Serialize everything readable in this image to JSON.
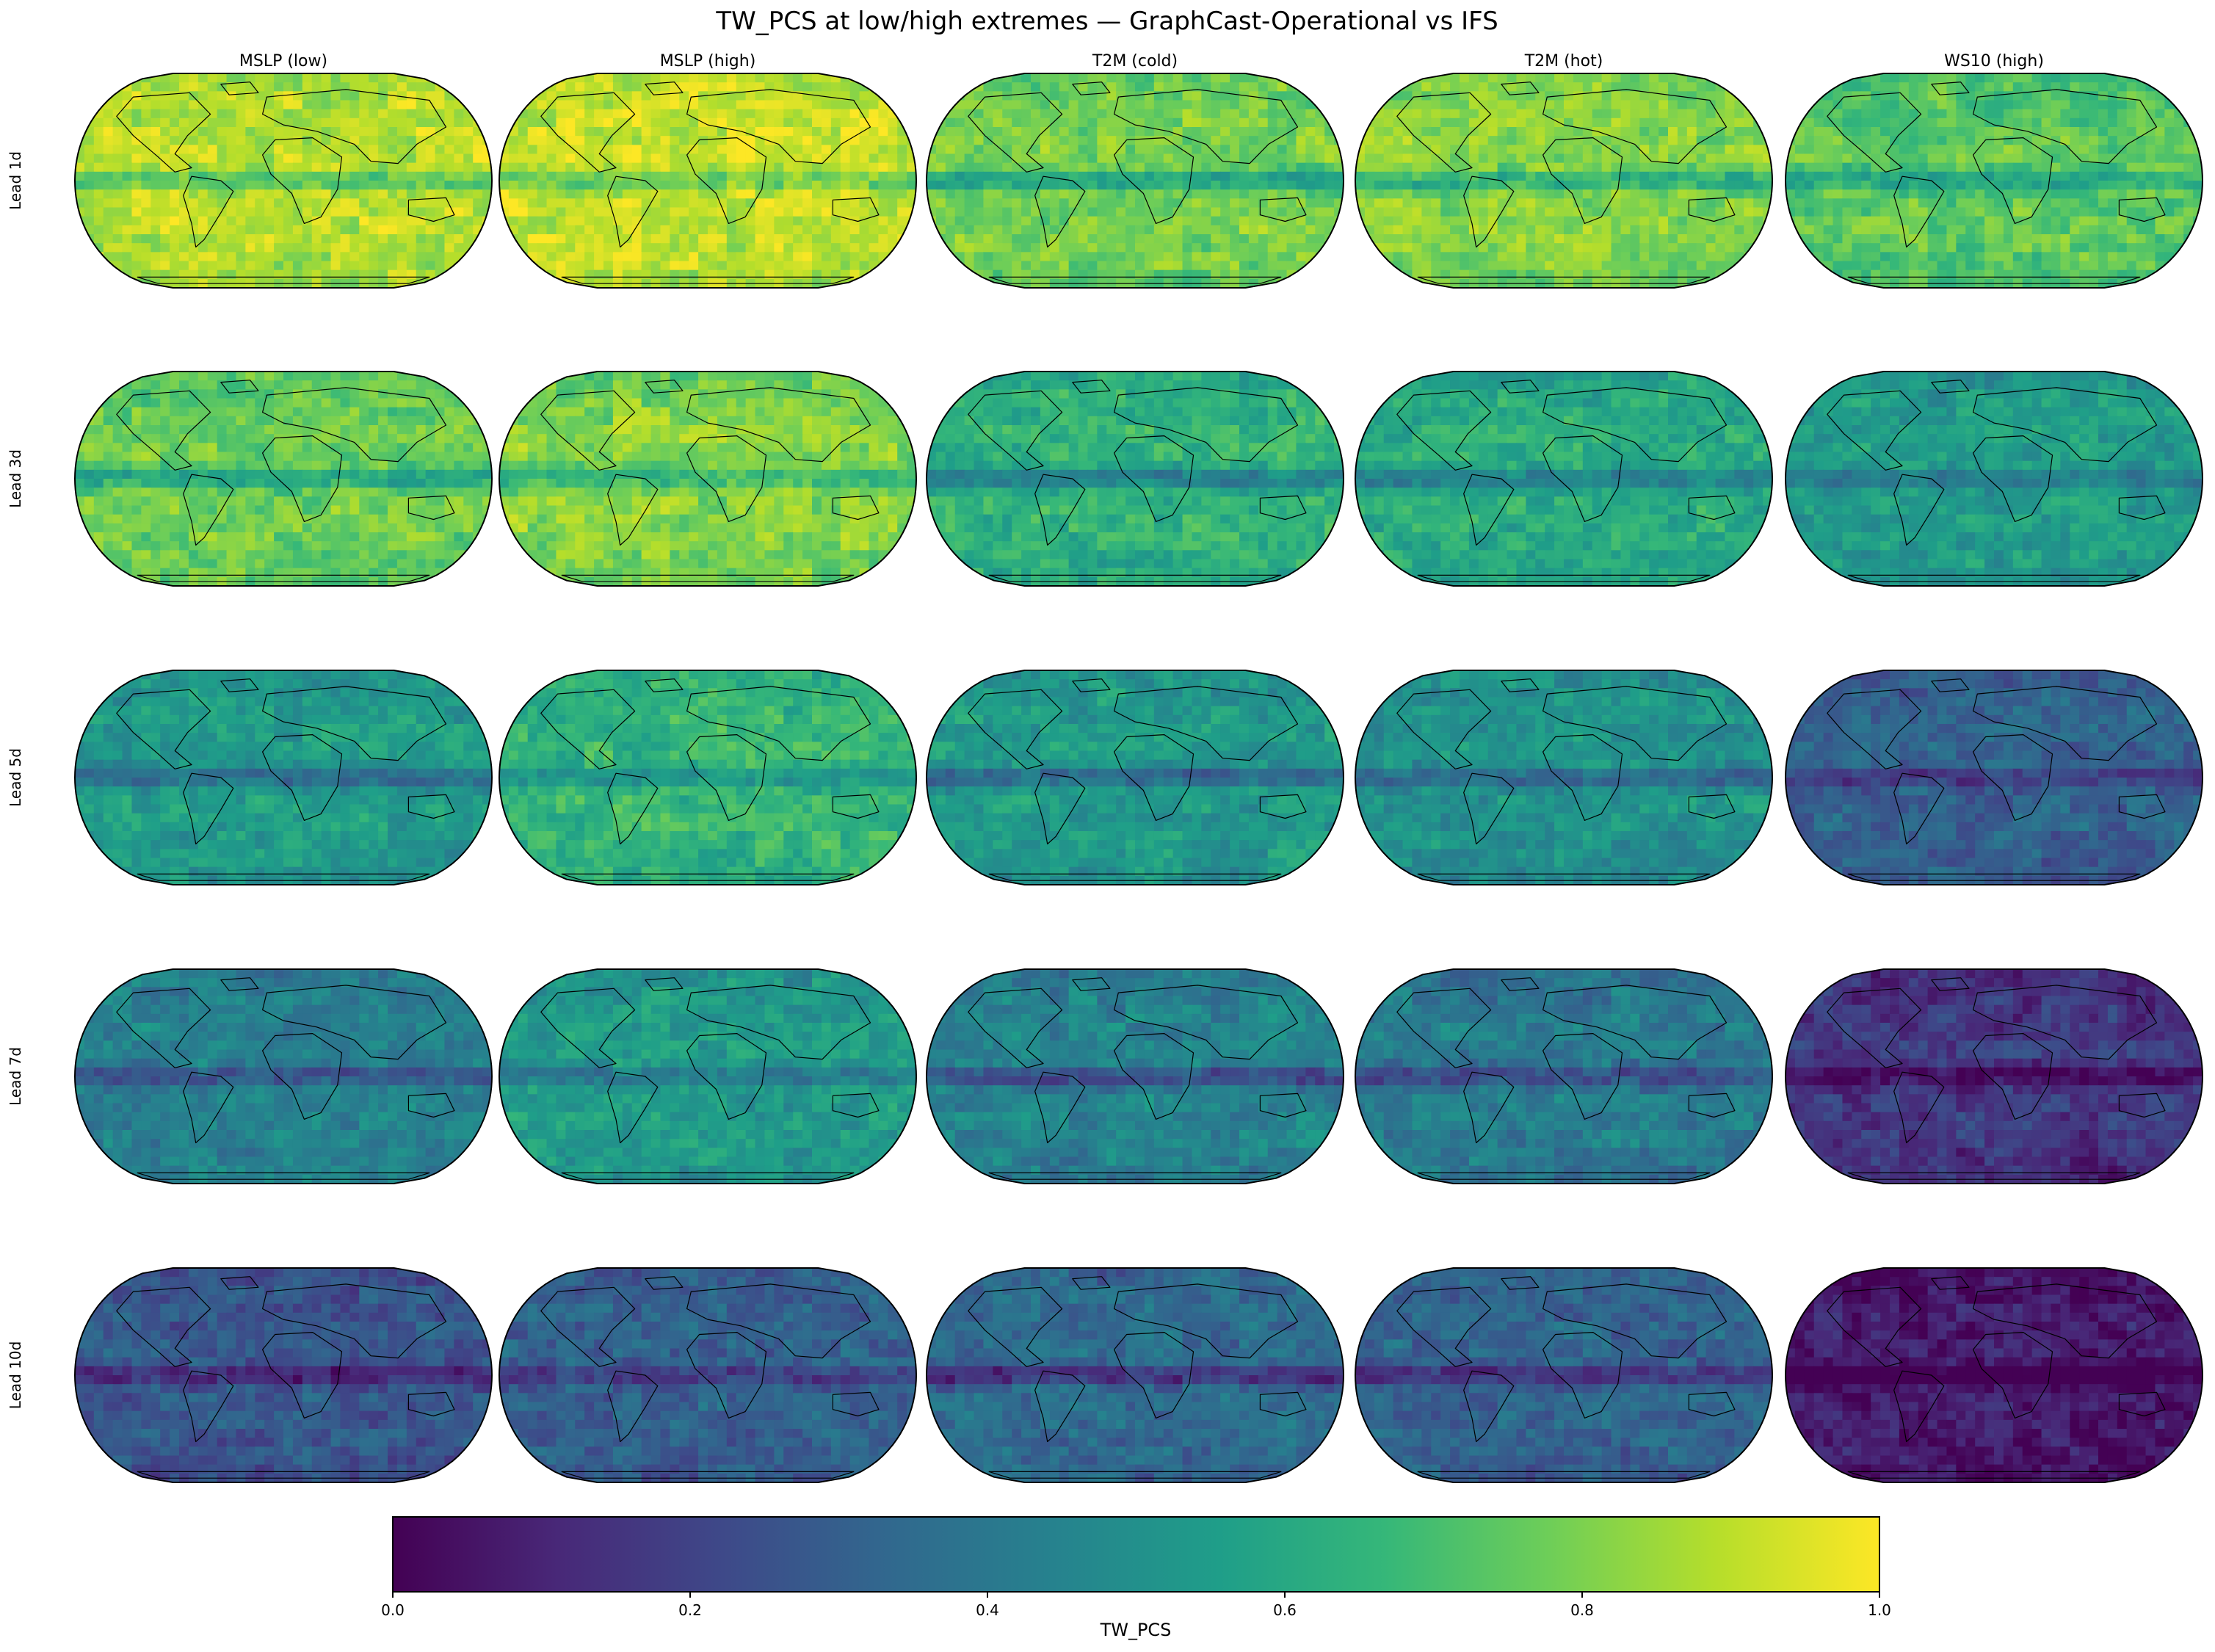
{
  "chart_data": {
    "type": "heatmap",
    "title": "TW_PCS at low/high extremes — GraphCast-Operational vs IFS",
    "columns": [
      "MSLP (low)",
      "MSLP (high)",
      "T2M (cold)",
      "T2M (hot)",
      "WS10 (high)"
    ],
    "rows": [
      "Lead 1d",
      "Lead 3d",
      "Lead 5d",
      "Lead 7d",
      "Lead 10d"
    ],
    "projection": "Robinson",
    "colormap": "viridis",
    "colorbar": {
      "label": "TW_PCS",
      "ticks": [
        "0.0",
        "0.2",
        "0.4",
        "0.6",
        "0.8",
        "1.0"
      ],
      "vmin": 0.0,
      "vmax": 1.0,
      "stops": [
        "#440154",
        "#482878",
        "#3e4989",
        "#31688e",
        "#26828e",
        "#1f9e89",
        "#35b779",
        "#6ece58",
        "#b5de2b",
        "#fde725"
      ]
    },
    "panel_levels_approx": [
      [
        0.9,
        0.92,
        0.8,
        0.82,
        0.75
      ],
      [
        0.78,
        0.82,
        0.65,
        0.62,
        0.56
      ],
      [
        0.55,
        0.66,
        0.55,
        0.52,
        0.32
      ],
      [
        0.45,
        0.55,
        0.45,
        0.42,
        0.17
      ],
      [
        0.28,
        0.32,
        0.36,
        0.33,
        0.08
      ]
    ],
    "tropical_band_offset_approx": [
      -0.2,
      -0.16,
      -0.25,
      -0.2,
      -0.16
    ]
  }
}
